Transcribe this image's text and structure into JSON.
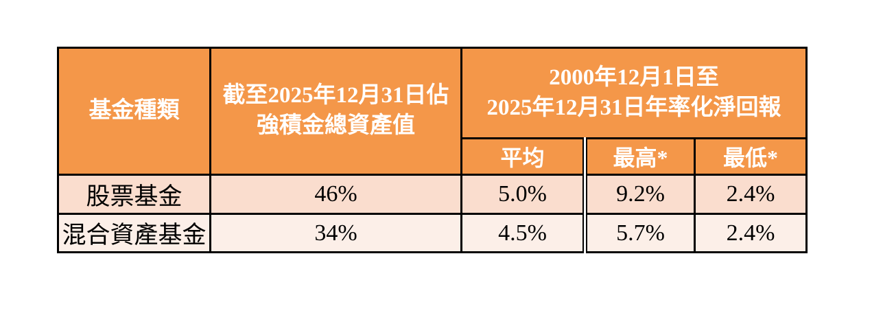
{
  "table": {
    "header": {
      "fund_type": "基金種類",
      "asset_share": "截至2025年12月31日佔\n強積金總資產值",
      "return_period": "2000年12月1日至\n2025年12月31日年率化淨回報",
      "sub": {
        "average": "平均",
        "highest": "最高*",
        "lowest": "最低*"
      }
    },
    "rows": [
      {
        "fund": "股票基金",
        "share": "46%",
        "average": "5.0%",
        "highest": "9.2%",
        "lowest": "2.4%"
      },
      {
        "fund": "混合資產基金",
        "share": "34%",
        "average": "4.5%",
        "highest": "5.7%",
        "lowest": "2.4%"
      }
    ]
  },
  "colors": {
    "header_background": "#F49749",
    "header_text": "#FFFFFF",
    "row1_background": "#FADDCE",
    "row2_background": "#FCEFE8",
    "border": "#000000",
    "body_text": "#000000",
    "page_background": "#FFFFFF"
  }
}
